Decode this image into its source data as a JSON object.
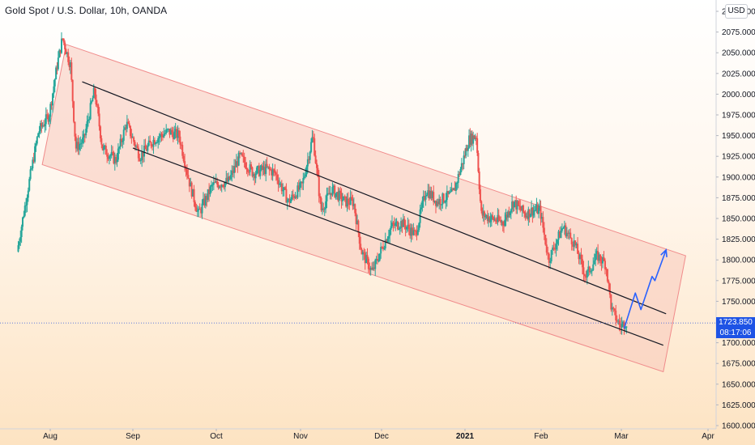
{
  "header": {
    "title": "Gold Spot / U.S. Dollar, 10h, OANDA",
    "currency_button": "USD"
  },
  "price_label": {
    "price": "1723.850",
    "countdown": "08:17:06"
  },
  "colors": {
    "up": "#26a69a",
    "down": "#ef5350",
    "channel_fill": "#f8c9bc",
    "channel_border": "#f08b8b",
    "trendline": "#131722",
    "projection": "#2962ff",
    "price_tag": "#1e53e5",
    "axis_text": "#131722"
  },
  "chart_data": {
    "type": "candlestick",
    "title": "Gold Spot / U.S. Dollar, 10h, OANDA",
    "currency": "USD",
    "y_axis": {
      "position": "right",
      "ticks": [
        "1600.000",
        "1625.000",
        "1650.000",
        "1675.000",
        "1700.000",
        "1725.000",
        "1750.000",
        "1775.000",
        "1800.000",
        "1825.000",
        "1850.000",
        "1875.000",
        "1900.000",
        "1925.000",
        "1950.000",
        "1975.000",
        "2000.000",
        "2025.000",
        "2050.000",
        "2075.000",
        "2100.000"
      ],
      "range": [
        1600,
        2100
      ]
    },
    "x_axis": {
      "ticks": [
        {
          "label": "Aug",
          "bold": false,
          "date": "2020-08-01"
        },
        {
          "label": "Sep",
          "bold": false,
          "date": "2020-09-01"
        },
        {
          "label": "Oct",
          "bold": false,
          "date": "2020-10-01"
        },
        {
          "label": "Nov",
          "bold": false,
          "date": "2020-11-01"
        },
        {
          "label": "Dec",
          "bold": false,
          "date": "2020-12-01"
        },
        {
          "label": "2021",
          "bold": true,
          "date": "2021-01-01"
        },
        {
          "label": "Feb",
          "bold": false,
          "date": "2021-02-01"
        },
        {
          "label": "Mar",
          "bold": false,
          "date": "2021-03-01"
        },
        {
          "label": "Apr",
          "bold": false,
          "date": "2021-04-01"
        }
      ]
    },
    "price_path": [
      [
        "2020-07-20",
        1810
      ],
      [
        "2020-07-24",
        1885
      ],
      [
        "2020-07-28",
        1955
      ],
      [
        "2020-08-01",
        1975
      ],
      [
        "2020-08-04",
        2035
      ],
      [
        "2020-08-06",
        2068
      ],
      [
        "2020-08-09",
        2035
      ],
      [
        "2020-08-11",
        1935
      ],
      [
        "2020-08-14",
        1945
      ],
      [
        "2020-08-18",
        2005
      ],
      [
        "2020-08-21",
        1935
      ],
      [
        "2020-08-26",
        1920
      ],
      [
        "2020-08-30",
        1965
      ],
      [
        "2020-09-04",
        1925
      ],
      [
        "2020-09-09",
        1945
      ],
      [
        "2020-09-14",
        1955
      ],
      [
        "2020-09-18",
        1950
      ],
      [
        "2020-09-22",
        1890
      ],
      [
        "2020-09-25",
        1855
      ],
      [
        "2020-09-30",
        1890
      ],
      [
        "2020-10-06",
        1895
      ],
      [
        "2020-10-10",
        1925
      ],
      [
        "2020-10-15",
        1905
      ],
      [
        "2020-10-20",
        1910
      ],
      [
        "2020-10-23",
        1905
      ],
      [
        "2020-10-28",
        1870
      ],
      [
        "2020-11-02",
        1890
      ],
      [
        "2020-11-06",
        1950
      ],
      [
        "2020-11-09",
        1860
      ],
      [
        "2020-11-13",
        1885
      ],
      [
        "2020-11-18",
        1870
      ],
      [
        "2020-11-21",
        1870
      ],
      [
        "2020-11-24",
        1810
      ],
      [
        "2020-11-28",
        1785
      ],
      [
        "2020-12-01",
        1810
      ],
      [
        "2020-12-05",
        1840
      ],
      [
        "2020-12-09",
        1845
      ],
      [
        "2020-12-14",
        1830
      ],
      [
        "2020-12-18",
        1885
      ],
      [
        "2020-12-22",
        1870
      ],
      [
        "2020-12-28",
        1880
      ],
      [
        "2021-01-03",
        1945
      ],
      [
        "2021-01-06",
        1950
      ],
      [
        "2021-01-08",
        1855
      ],
      [
        "2021-01-12",
        1850
      ],
      [
        "2021-01-17",
        1845
      ],
      [
        "2021-01-21",
        1870
      ],
      [
        "2021-01-26",
        1855
      ],
      [
        "2021-01-29",
        1860
      ],
      [
        "2021-02-01",
        1860
      ],
      [
        "2021-02-04",
        1800
      ],
      [
        "2021-02-09",
        1840
      ],
      [
        "2021-02-13",
        1820
      ],
      [
        "2021-02-17",
        1780
      ],
      [
        "2021-02-21",
        1805
      ],
      [
        "2021-02-24",
        1795
      ],
      [
        "2021-02-26",
        1740
      ],
      [
        "2021-03-01",
        1720
      ],
      [
        "2021-03-03",
        1725
      ]
    ],
    "annotations": [
      {
        "type": "parallel_channel",
        "upper": [
          [
            "2020-08-07",
            2060
          ],
          [
            "2021-03-24",
            1805
          ]
        ],
        "lower": [
          [
            "2020-07-29",
            1915
          ],
          [
            "2021-03-16",
            1665
          ]
        ]
      },
      {
        "type": "trendline",
        "points": [
          [
            "2020-08-13",
            2015
          ],
          [
            "2021-03-17",
            1735
          ]
        ]
      },
      {
        "type": "trendline",
        "points": [
          [
            "2020-09-01",
            1935
          ],
          [
            "2021-03-16",
            1697
          ]
        ]
      },
      {
        "type": "projection_path",
        "points": [
          [
            "2021-03-02",
            1717
          ],
          [
            "2021-03-06",
            1760
          ],
          [
            "2021-03-08",
            1740
          ],
          [
            "2021-03-12",
            1780
          ],
          [
            "2021-03-13",
            1775
          ],
          [
            "2021-03-17",
            1812
          ]
        ]
      }
    ],
    "current_price": 1723.85,
    "bar_countdown": "08:17:06",
    "grid": false,
    "background": "vertical gradient white to pale orange"
  }
}
